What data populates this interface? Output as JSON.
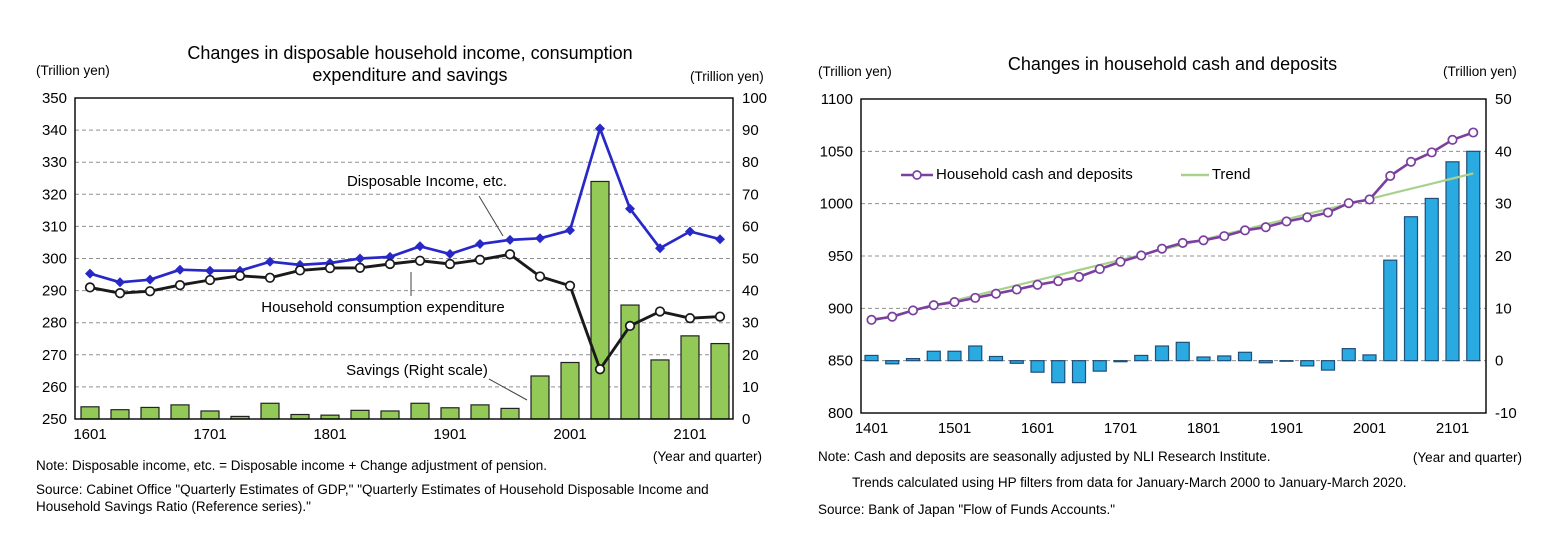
{
  "page": {
    "background": "#ffffff"
  },
  "chart_data": [
    {
      "id": "income-consumption-savings",
      "type": "bar+line combo",
      "title": "Changes in disposable household income, consumption expenditure and savings",
      "x_caption": "(Year and quarter)",
      "note": "Note: Disposable income, etc. = Disposable income + Change adjustment of pension.",
      "source": "Source: Cabinet Office \"Quarterly Estimates of GDP,\" \"Quarterly Estimates of Household Disposable Income and Household Savings Ratio (Reference series).\"",
      "grid_color": "#909090",
      "axis_color": "#000000",
      "left_axis": {
        "unit": "(Trillion yen)",
        "min": 250,
        "max": 350,
        "step": 10,
        "ticks": [
          350,
          340,
          330,
          320,
          310,
          300,
          290,
          280,
          270,
          260,
          250
        ]
      },
      "right_axis": {
        "unit": "(Trillion yen)",
        "min": 0,
        "max": 100,
        "step": 10,
        "ticks": [
          100,
          90,
          80,
          70,
          60,
          50,
          40,
          30,
          20,
          10,
          0
        ]
      },
      "categories": [
        "1601",
        "1602",
        "1603",
        "1604",
        "1701",
        "1702",
        "1703",
        "1704",
        "1801",
        "1802",
        "1803",
        "1804",
        "1901",
        "1902",
        "1903",
        "1904",
        "2001",
        "2002",
        "2003",
        "2004",
        "2101",
        "2102"
      ],
      "x_ticks": [
        {
          "index": 0,
          "label": "1601"
        },
        {
          "index": 4,
          "label": "1701"
        },
        {
          "index": 8,
          "label": "1801"
        },
        {
          "index": 12,
          "label": "1901"
        },
        {
          "index": 16,
          "label": "2001"
        },
        {
          "index": 20,
          "label": "2101"
        }
      ],
      "series": [
        {
          "name": "Disposable Income, etc.",
          "type": "line",
          "axis": "left",
          "color": "#2828c8",
          "marker": "diamond",
          "values": [
            295.3,
            292.6,
            293.4,
            296.5,
            296.2,
            296.2,
            299.0,
            298.0,
            298.6,
            300.0,
            300.5,
            303.8,
            301.4,
            304.5,
            305.8,
            306.3,
            308.8,
            340.5,
            315.5,
            303.2,
            308.4,
            306.0
          ]
        },
        {
          "name": "Household consumption expenditure",
          "type": "line",
          "axis": "left",
          "color": "#1a1a1a",
          "marker": "circle-open",
          "values": [
            291.0,
            289.2,
            289.8,
            291.7,
            293.3,
            294.6,
            294.0,
            296.3,
            297.0,
            297.1,
            298.3,
            299.3,
            298.3,
            299.6,
            301.3,
            294.4,
            291.5,
            265.5,
            279.0,
            283.5,
            281.4,
            281.9
          ]
        },
        {
          "name": "Savings (Right scale)",
          "type": "bar",
          "axis": "right",
          "color": "#92c957",
          "border": "#222222",
          "values": [
            3.8,
            2.9,
            3.6,
            4.4,
            2.5,
            0.8,
            4.9,
            1.4,
            1.2,
            2.7,
            2.5,
            4.9,
            3.5,
            4.4,
            3.3,
            13.4,
            17.6,
            74.0,
            35.5,
            18.4,
            25.9,
            23.5
          ]
        }
      ]
    },
    {
      "id": "household-cash-deposits",
      "type": "bar+line combo",
      "title": "Changes in household cash and deposits",
      "x_caption": "(Year and quarter)",
      "note": "Note: Cash and deposits are seasonally adjusted by NLI Research Institute.",
      "note2": "Trends calculated using HP filters from data for January-March 2000 to January-March 2020.",
      "source": "Source: Bank of Japan  \"Flow of Funds Accounts.\"",
      "grid_color": "#909090",
      "axis_color": "#000000",
      "legend_position": "top-inside",
      "left_axis": {
        "unit": "(Trillion yen)",
        "min": 800,
        "max": 1100,
        "step": 50,
        "ticks": [
          1100,
          1050,
          1000,
          950,
          900,
          850,
          800
        ]
      },
      "right_axis": {
        "unit": "(Trillion yen)",
        "min": -10,
        "max": 50,
        "step": 10,
        "ticks": [
          50,
          40,
          30,
          20,
          10,
          0,
          -10
        ]
      },
      "categories": [
        "1401",
        "1402",
        "1403",
        "1404",
        "1501",
        "1502",
        "1503",
        "1504",
        "1601",
        "1602",
        "1603",
        "1604",
        "1701",
        "1702",
        "1703",
        "1704",
        "1801",
        "1802",
        "1803",
        "1804",
        "1901",
        "1902",
        "1903",
        "1904",
        "2001",
        "2002",
        "2003",
        "2004",
        "2101",
        "2102"
      ],
      "x_ticks": [
        {
          "index": 0,
          "label": "1401"
        },
        {
          "index": 4,
          "label": "1501"
        },
        {
          "index": 8,
          "label": "1601"
        },
        {
          "index": 12,
          "label": "1701"
        },
        {
          "index": 16,
          "label": "1801"
        },
        {
          "index": 20,
          "label": "1901"
        },
        {
          "index": 24,
          "label": "2001"
        },
        {
          "index": 28,
          "label": "2101"
        }
      ],
      "series": [
        {
          "name": "Household cash and deposits",
          "type": "line",
          "axis": "left",
          "color": "#7b3fa0",
          "marker": "circle-open",
          "values": [
            889,
            892,
            898,
            903,
            906,
            910,
            914,
            918,
            922.5,
            926,
            930,
            937.5,
            944.5,
            950.5,
            957,
            962.5,
            965,
            969,
            974.5,
            977.5,
            983,
            987,
            991.5,
            1000.5,
            1004,
            1026.5,
            1040,
            1049,
            1061,
            1068
          ]
        },
        {
          "name": "Trend",
          "type": "line",
          "axis": "left",
          "color": "#a9d18e",
          "marker": "none",
          "values": [
            888.0,
            892.9,
            897.7,
            902.6,
            907.4,
            912.3,
            917.1,
            922.0,
            926.9,
            931.7,
            936.6,
            941.4,
            946.3,
            951.1,
            956.0,
            960.9,
            965.7,
            970.6,
            975.4,
            980.3,
            985.1,
            990.0,
            994.9,
            999.7,
            1004.6,
            1009.4,
            1014.3,
            1019.1,
            1024.0,
            1028.9
          ]
        },
        {
          "name": "",
          "type": "bar",
          "axis": "right",
          "color": "#29abe2",
          "border": "#1f4e79",
          "values": [
            1.0,
            -0.6,
            0.4,
            1.8,
            1.8,
            2.8,
            0.8,
            -0.5,
            -2.2,
            -4.2,
            -4.2,
            -2.0,
            -0.2,
            1.0,
            2.8,
            3.5,
            0.7,
            0.9,
            1.6,
            -0.4,
            -0.1,
            -1.0,
            -1.8,
            2.3,
            1.1,
            19.2,
            27.5,
            31.0,
            38.0,
            40.0
          ]
        }
      ]
    }
  ]
}
